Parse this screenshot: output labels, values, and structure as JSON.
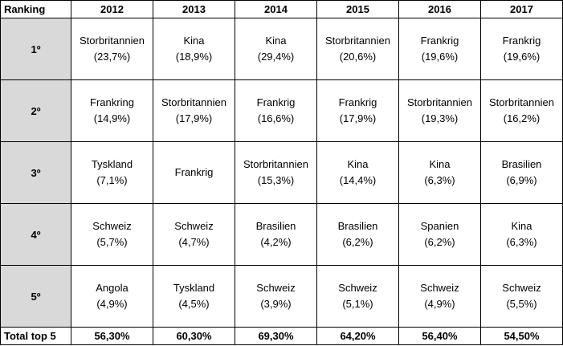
{
  "header": {
    "ranking": "Ranking",
    "years": [
      "2012",
      "2013",
      "2014",
      "2015",
      "2016",
      "2017"
    ]
  },
  "rows": [
    {
      "rank": "1º",
      "cells": [
        {
          "country": "Storbritannien",
          "pct": "(23,7%)"
        },
        {
          "country": "Kina",
          "pct": "(18,9%)"
        },
        {
          "country": "Kina",
          "pct": "(29,4%)"
        },
        {
          "country": "Storbritannien",
          "pct": "(20,6%)"
        },
        {
          "country": "Frankrig",
          "pct": "(19,6%)"
        },
        {
          "country": "Frankrig",
          "pct": "(19,6%)"
        }
      ]
    },
    {
      "rank": "2º",
      "cells": [
        {
          "country": "Frankring",
          "pct": "(14,9%)"
        },
        {
          "country": "Storbritannien",
          "pct": "(17,9%)"
        },
        {
          "country": "Frankrig",
          "pct": "(16,6%)"
        },
        {
          "country": "Frankrig",
          "pct": "(17,9%)"
        },
        {
          "country": "Storbritannien",
          "pct": "(19,3%)"
        },
        {
          "country": "Storbritannien",
          "pct": "(16,2%)"
        }
      ]
    },
    {
      "rank": "3º",
      "cells": [
        {
          "country": "Tyskland",
          "pct": "(7,1%)"
        },
        {
          "country": "Frankrig",
          "pct": ""
        },
        {
          "country": "Storbritannien",
          "pct": "(15,3%)"
        },
        {
          "country": "Kina",
          "pct": "(14,4%)"
        },
        {
          "country": "Kina",
          "pct": "(6,3%)"
        },
        {
          "country": "Brasilien",
          "pct": "(6,9%)"
        }
      ]
    },
    {
      "rank": "4º",
      "cells": [
        {
          "country": "Schweiz",
          "pct": "(5,7%)"
        },
        {
          "country": "Schweiz",
          "pct": "(4,7%)"
        },
        {
          "country": "Brasilien",
          "pct": "(4,2%)"
        },
        {
          "country": "Brasilien",
          "pct": "(6,2%)"
        },
        {
          "country": "Spanien",
          "pct": "(6,2%)"
        },
        {
          "country": "Kina",
          "pct": "(6,3%)"
        }
      ]
    },
    {
      "rank": "5º",
      "cells": [
        {
          "country": "Angola",
          "pct": "(4,9%)"
        },
        {
          "country": "Tyskland",
          "pct": "(4,5%)"
        },
        {
          "country": "Schweiz",
          "pct": "(3,9%)"
        },
        {
          "country": "Schweiz",
          "pct": "(5,1%)"
        },
        {
          "country": "Schweiz",
          "pct": "(4,9%)"
        },
        {
          "country": "Schweiz",
          "pct": "(5,5%)"
        }
      ]
    }
  ],
  "total": {
    "label": "Total top 5",
    "values": [
      "56,30%",
      "60,30%",
      "69,30%",
      "64,20%",
      "56,40%",
      "54,50%"
    ]
  }
}
